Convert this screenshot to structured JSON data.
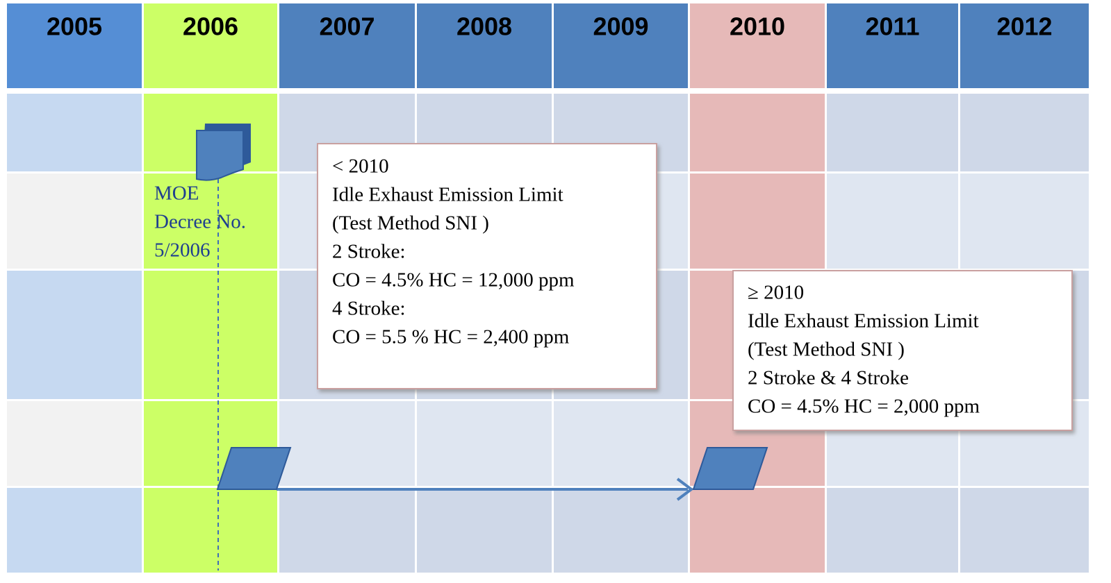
{
  "years": [
    "2005",
    "2006",
    "2007",
    "2008",
    "2009",
    "2010",
    "2011",
    "2012"
  ],
  "decree": [
    "MOE",
    "Decree No.",
    "5/2006"
  ],
  "before_2010": [
    "< 2010",
    "Idle Exhaust Emission Limit",
    "(Test Method  SNI )",
    "2 Stroke:",
    "CO  = 4.5%  HC  = 12,000 ppm",
    "4 Stroke:",
    "CO = 5.5 %  HC  =  2,400 ppm"
  ],
  "from_2010": [
    "≥ 2010",
    "Idle Exhaust Emission Limit",
    "(Test Method SNI )",
    "2 Stroke & 4 Stroke",
    "CO  = 4.5%  HC  = 2,000 ppm"
  ]
}
